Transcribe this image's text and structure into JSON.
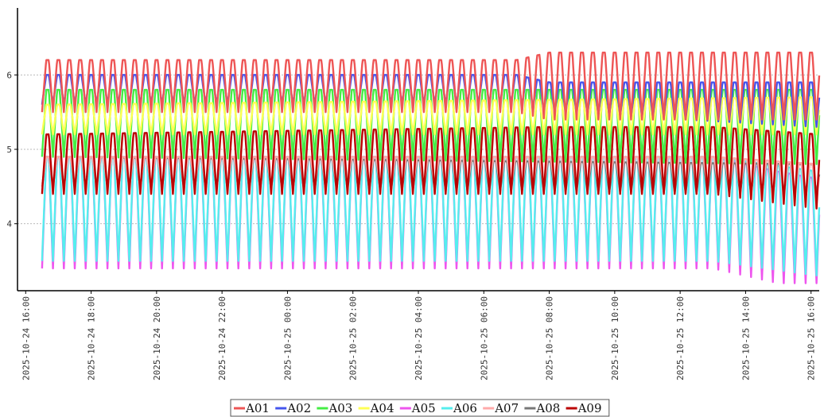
{
  "chart_data": {
    "type": "line",
    "title": "",
    "xlabel": "",
    "ylabel": "",
    "ylim": [
      3.1,
      6.9
    ],
    "xlim": [
      "2025-10-24 15:45",
      "2025-10-25 16:15"
    ],
    "grid": "horizontal dashed",
    "legend": "bottom",
    "y_ticks": [
      "4",
      "5",
      "6"
    ],
    "x_ticks": [
      "2025-10-24 16:00",
      "2025-10-24 18:00",
      "2025-10-24 20:00",
      "2025-10-24 22:00",
      "2025-10-25 00:00",
      "2025-10-25 02:00",
      "2025-10-25 04:00",
      "2025-10-25 06:00",
      "2025-10-25 08:00",
      "2025-10-25 10:00",
      "2025-10-25 12:00",
      "2025-10-25 14:00",
      "2025-10-25 16:00"
    ],
    "series": [
      {
        "name": "A05",
        "color": "#ee55ee",
        "start": "2025-10-24 16:30",
        "end": "2025-10-25 16:15",
        "period_minutes": 20,
        "points": [
          [
            "2025-10-24 16:30",
            4.9,
            3.4
          ],
          [
            "2025-10-25 08:00",
            4.9,
            3.4
          ],
          [
            "2025-10-25 13:00",
            4.9,
            3.4
          ],
          [
            "2025-10-25 14:00",
            4.8,
            3.3
          ],
          [
            "2025-10-25 15:00",
            4.7,
            3.2
          ],
          [
            "2025-10-25 16:15",
            4.6,
            3.2
          ]
        ]
      },
      {
        "name": "A06",
        "color": "#55eeee",
        "start": "2025-10-24 16:30",
        "end": "2025-10-25 16:15",
        "period_minutes": 20,
        "points": [
          [
            "2025-10-24 16:30",
            4.9,
            3.5
          ],
          [
            "2025-10-25 13:00",
            4.9,
            3.5
          ],
          [
            "2025-10-25 16:15",
            4.7,
            3.3
          ]
        ]
      },
      {
        "name": "A08",
        "color": "#777777",
        "start": "2025-10-24 16:30",
        "end": "2025-10-25 16:15",
        "period_minutes": 20,
        "points": [
          [
            "2025-10-24 16:30",
            4.9,
            4.5
          ],
          [
            "2025-10-25 16:15",
            4.8,
            4.4
          ]
        ]
      },
      {
        "name": "A07",
        "color": "#ffaaaa",
        "start": "2025-10-24 16:30",
        "end": "2025-10-25 16:15",
        "period_minutes": 20,
        "points": [
          [
            "2025-10-24 16:30",
            4.9,
            4.5
          ],
          [
            "2025-10-25 13:00",
            4.9,
            4.5
          ],
          [
            "2025-10-25 16:15",
            4.8,
            4.3
          ]
        ]
      },
      {
        "name": "A09",
        "color": "#bb0000",
        "start": "2025-10-24 16:30",
        "end": "2025-10-25 16:15",
        "period_minutes": 20,
        "points": [
          [
            "2025-10-24 16:30",
            5.2,
            4.4
          ],
          [
            "2025-10-25 08:00",
            5.3,
            4.4
          ],
          [
            "2025-10-25 13:00",
            5.3,
            4.4
          ],
          [
            "2025-10-25 16:15",
            5.2,
            4.2
          ]
        ]
      },
      {
        "name": "A03",
        "color": "#44ee44",
        "start": "2025-10-24 16:30",
        "end": "2025-10-25 16:15",
        "period_minutes": 20,
        "points": [
          [
            "2025-10-24 16:30",
            5.8,
            4.9
          ],
          [
            "2025-10-25 16:15",
            5.8,
            4.8
          ]
        ]
      },
      {
        "name": "A04",
        "color": "#ffff55",
        "start": "2025-10-24 16:30",
        "end": "2025-10-25 16:15",
        "period_minutes": 20,
        "points": [
          [
            "2025-10-24 16:30",
            5.6,
            5.2
          ],
          [
            "2025-10-25 16:15",
            5.7,
            5.2
          ]
        ]
      },
      {
        "name": "A02",
        "color": "#4455ee",
        "start": "2025-10-24 16:30",
        "end": "2025-10-25 16:15",
        "period_minutes": 20,
        "points": [
          [
            "2025-10-24 16:30",
            6.0,
            5.6
          ],
          [
            "2025-10-25 07:00",
            6.0,
            5.6
          ],
          [
            "2025-10-25 08:00",
            5.9,
            5.5
          ],
          [
            "2025-10-25 16:15",
            5.9,
            5.3
          ]
        ]
      },
      {
        "name": "A01",
        "color": "#ee5555",
        "start": "2025-10-24 16:30",
        "end": "2025-10-25 16:15",
        "period_minutes": 20,
        "points": [
          [
            "2025-10-24 16:30",
            6.2,
            5.5
          ],
          [
            "2025-10-25 07:00",
            6.2,
            5.5
          ],
          [
            "2025-10-25 08:00",
            6.3,
            5.4
          ],
          [
            "2025-10-25 16:15",
            6.3,
            5.4
          ]
        ]
      }
    ],
    "legend_order": [
      "A01",
      "A02",
      "A03",
      "A04",
      "A05",
      "A06",
      "A07",
      "A08",
      "A09"
    ]
  }
}
